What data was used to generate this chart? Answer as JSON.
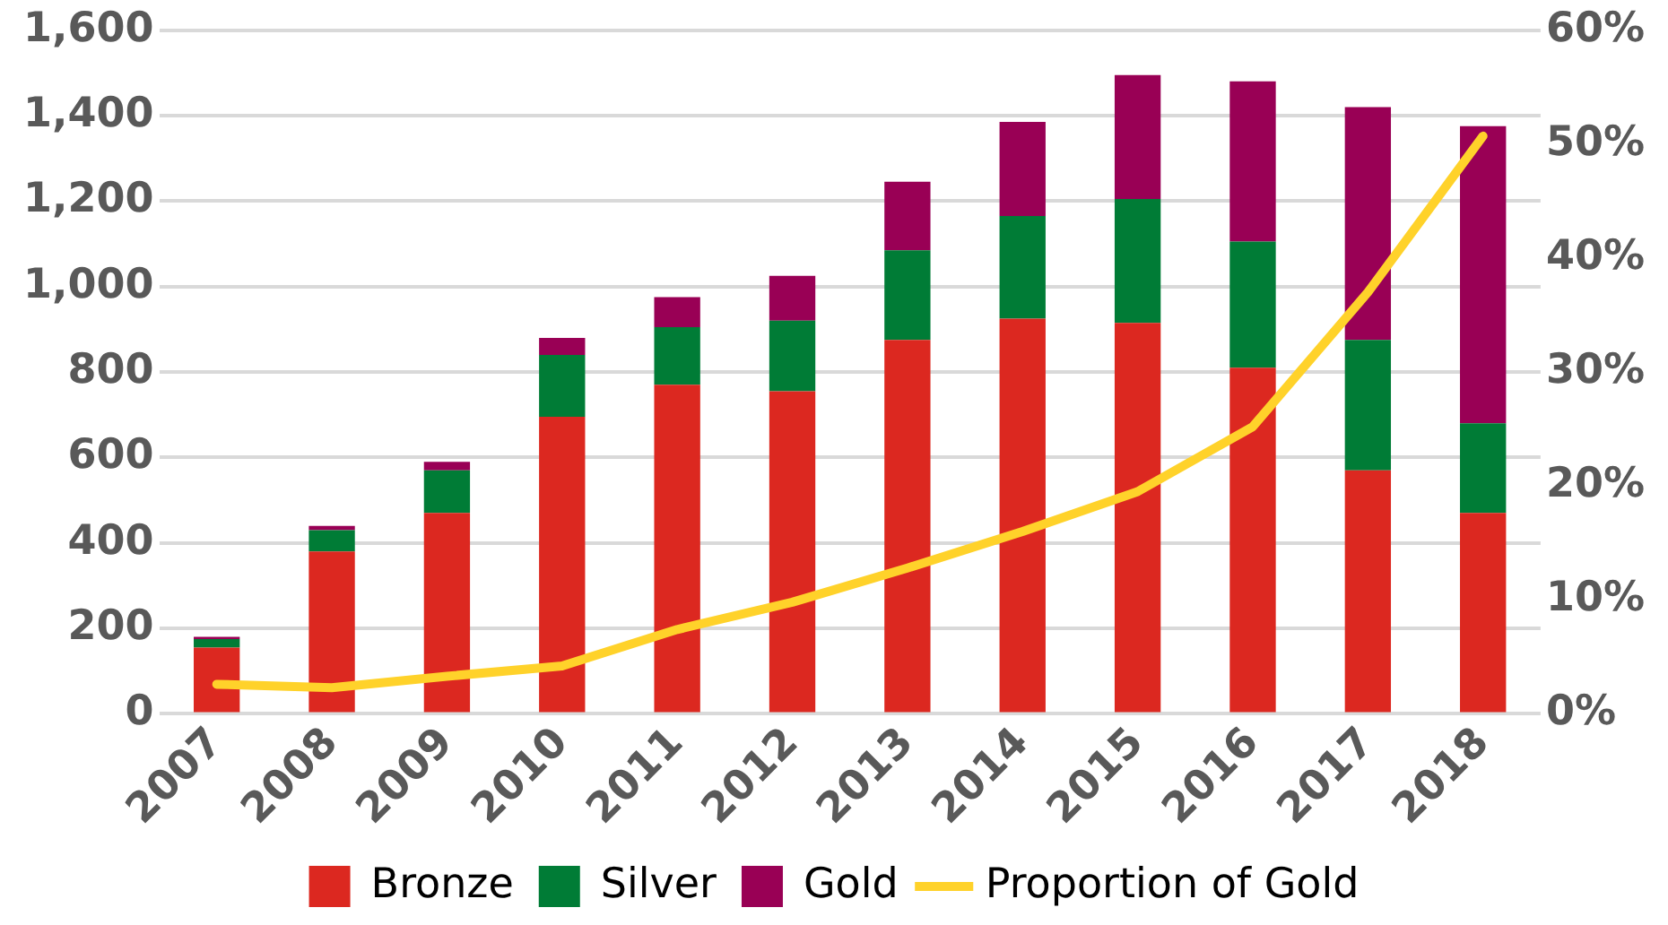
{
  "chart_data": {
    "type": "bar",
    "stacked": true,
    "categories": [
      "2007",
      "2008",
      "2009",
      "2010",
      "2011",
      "2012",
      "2013",
      "2014",
      "2015",
      "2016",
      "2017",
      "2018"
    ],
    "series": [
      {
        "name": "Bronze",
        "color": "#dc2820",
        "values": [
          155,
          380,
          470,
          695,
          770,
          755,
          875,
          925,
          915,
          810,
          570,
          470
        ]
      },
      {
        "name": "Silver",
        "color": "#007c36",
        "values": [
          20,
          50,
          100,
          145,
          135,
          165,
          210,
          240,
          290,
          295,
          305,
          210
        ]
      },
      {
        "name": "Gold",
        "color": "#990055",
        "values": [
          5,
          10,
          20,
          40,
          70,
          105,
          160,
          220,
          290,
          375,
          545,
          695
        ]
      },
      {
        "name": "Proportion of Gold",
        "type": "line",
        "axis": "y2",
        "color": "#ffd22a",
        "marker": "none",
        "values": [
          2.6,
          2.3,
          3.3,
          4.2,
          7.4,
          9.8,
          12.8,
          16,
          19.5,
          25.2,
          37,
          50.7
        ]
      }
    ],
    "ylim": [
      0,
      1600
    ],
    "yticks": [
      0,
      200,
      400,
      600,
      800,
      {
        "value": 1000,
        "label": "1,000"
      },
      {
        "value": 1200,
        "label": "1,200"
      },
      {
        "value": 1400,
        "label": "1,400"
      },
      {
        "value": 1600,
        "label": "1,600"
      }
    ],
    "y2lim": [
      0,
      60
    ],
    "y2ticks": [
      {
        "value": 0,
        "label": "0%"
      },
      {
        "value": 10,
        "label": "10%"
      },
      {
        "value": 20,
        "label": "20%"
      },
      {
        "value": 30,
        "label": "30%"
      },
      {
        "value": 40,
        "label": "40%"
      },
      {
        "value": 50,
        "label": "50%"
      },
      {
        "value": 60,
        "label": "60%"
      }
    ],
    "grid": "y",
    "legend": "bottom"
  }
}
